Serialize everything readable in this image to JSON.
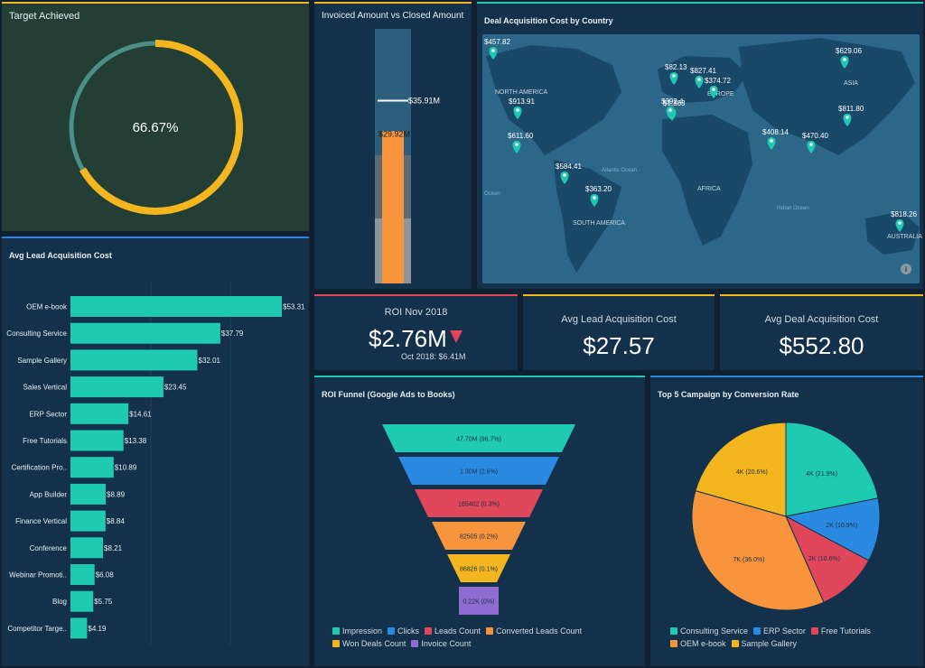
{
  "colors": {
    "teal": "#1ecab0",
    "orange": "#f7943c",
    "gold": "#f3b61f",
    "blue": "#2a89e0",
    "red": "#e0475b",
    "purple": "#8e6cd2",
    "pin": "#1ec9b3"
  },
  "target": {
    "title": "Target Achieved",
    "value_label": "66.67%",
    "progress": 0.6667
  },
  "invoiced": {
    "title": "Invoiced Amount vs Closed Amount",
    "invoiced_label": "$35.91M",
    "closed_label": "$29.92M"
  },
  "map": {
    "title": "Deal Acquisition Cost by Country",
    "regions": [
      "NORTH AMERICA",
      "SOUTH AMERICA",
      "AFRICA",
      "ASIA",
      "EUROPE",
      "AUSTRALIA"
    ],
    "oceans": [
      "Atlantic Ocean",
      "Indian Ocean",
      "Ocean"
    ],
    "pins": [
      "$457.82",
      "$913.91",
      "$611.60",
      "$584.41",
      "$363.20",
      "$82.13",
      "$1,363",
      "$827.41",
      "$392.4",
      "$374.72",
      "$629.06",
      "$811.80",
      "$408.14",
      "$470.40",
      "$818.26"
    ]
  },
  "roi": {
    "title": "ROI Nov 2018",
    "value": "$2.76M",
    "prev": "Oct 2018: $6.41M"
  },
  "avg_lead": {
    "title": "Avg Lead Acquisition Cost",
    "value": "$27.57"
  },
  "avg_deal": {
    "title": "Avg Deal Acquisition Cost",
    "value": "$552.80"
  },
  "chart_data": [
    {
      "type": "bar",
      "title": "Avg Lead Acquisition Cost",
      "categories": [
        "OEM e-book",
        "Consulting Service",
        "Sample Gallery",
        "Sales Vertical",
        "ERP Sector",
        "Free Tutorials",
        "Certification Pro..",
        "App Builder",
        "Finance Vertical",
        "Conference",
        "Webinar Promoti..",
        "Blog",
        "Competitor Targe.."
      ],
      "values": [
        53.31,
        37.79,
        32.01,
        23.45,
        14.61,
        13.38,
        10.89,
        8.89,
        8.84,
        8.21,
        6.08,
        5.75,
        4.19
      ],
      "value_labels": [
        "$53.31",
        "$37.79",
        "$32.01",
        "$23.45",
        "$14.61",
        "$13.38",
        "$10.89",
        "$8.89",
        "$8.84",
        "$8.21",
        "$6.08",
        "$5.75",
        "$4.19"
      ]
    },
    {
      "type": "bar",
      "title": "Invoiced Amount vs Closed Amount",
      "series": [
        {
          "name": "Invoiced",
          "values": [
            35.91
          ]
        },
        {
          "name": "Closed",
          "values": [
            29.92
          ]
        }
      ]
    },
    {
      "type": "funnel",
      "title": "ROI Funnel (Google Ads to Books)",
      "categories": [
        "Impression",
        "Clicks",
        "Leads Count",
        "Converted Leads Count",
        "Won Deals Count",
        "Invoice Count"
      ],
      "value_labels": [
        "47.70M (96.7%)",
        "1.30M (2.6%)",
        "165402 (0.3%)",
        "82505 (0.2%)",
        "86826 (0.1%)",
        "0.22K (0%)"
      ]
    },
    {
      "type": "pie",
      "title": "Top 5 Campaign by Conversion Rate",
      "categories": [
        "Consulting Service",
        "ERP Sector",
        "Free Tutorials",
        "OEM e-book",
        "Sample Gallery"
      ],
      "values": [
        21.9,
        10.9,
        10.6,
        36.0,
        20.6
      ],
      "value_labels": [
        "4K (21.9%)",
        "2K (10.9%)",
        "2K (10.6%)",
        "7K (36.0%)",
        "4K (20.6%)"
      ]
    }
  ]
}
